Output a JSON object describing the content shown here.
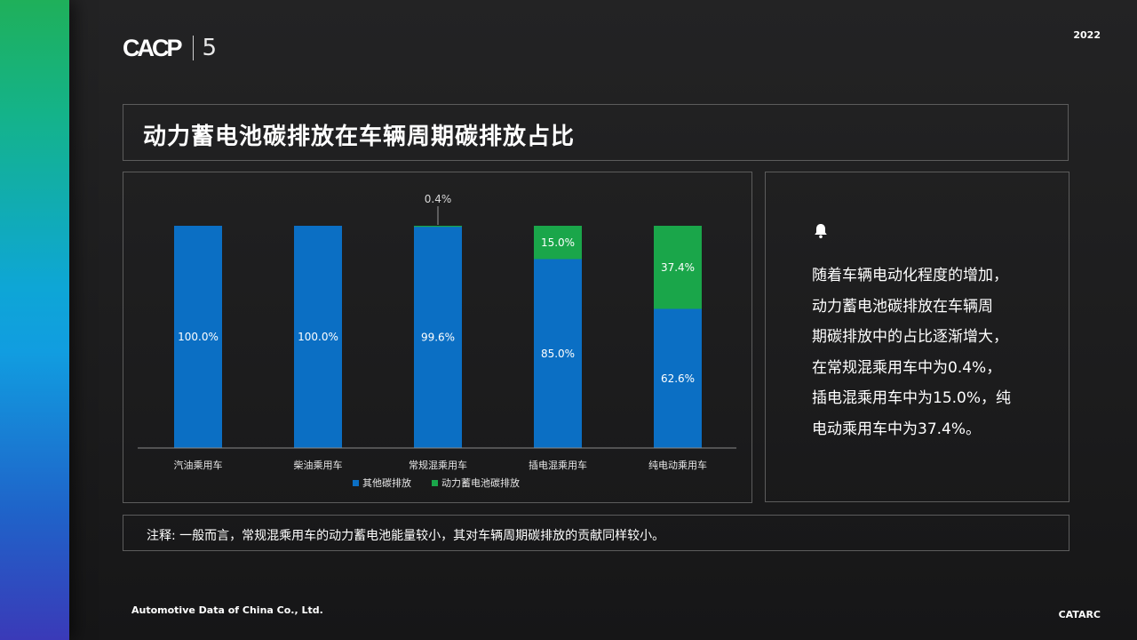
{
  "header": {
    "year": "2022",
    "logo_text": "CACP",
    "logo_number": "5"
  },
  "title": "动力蓄电池碳排放在车辆周期碳排放占比",
  "chart_data": {
    "type": "bar",
    "stacked": true,
    "categories": [
      "汽油乘用车",
      "柴油乘用车",
      "常规混乘用车",
      "插电混乘用车",
      "纯电动乘用车"
    ],
    "series": [
      {
        "name": "其他碳排放",
        "values": [
          100.0,
          100.0,
          99.6,
          85.0,
          62.6
        ],
        "labels": [
          "100.0%",
          "100.0%",
          "99.6%",
          "85.0%",
          "62.6%"
        ],
        "color": "#0b6fc4"
      },
      {
        "name": "动力蓄电池碳排放",
        "values": [
          0.0,
          0.0,
          0.4,
          15.0,
          37.4
        ],
        "labels": [
          "",
          "",
          "0.4%",
          "15.0%",
          "37.4%"
        ],
        "color": "#1aa64a"
      }
    ],
    "ylim": [
      0,
      100
    ],
    "legend_position": "bottom",
    "grid": false
  },
  "note": {
    "icon": "bell-icon",
    "lines": [
      "随着车辆电动化程度的增加，",
      "动力蓄电池碳排放在车辆周",
      "期碳排放中的占比逐渐增大，",
      "在常规混乘用车中为0.4%，",
      "插电混乘用车中为15.0%，纯",
      "电动乘用车中为37.4%。"
    ]
  },
  "footnote": "注释: 一般而言，常规混乘用车的动力蓄电池能量较小，其对车辆周期碳排放的贡献同样较小。",
  "footer": {
    "company": "Automotive Data of China Co., Ltd.",
    "brand": "CATARC"
  }
}
